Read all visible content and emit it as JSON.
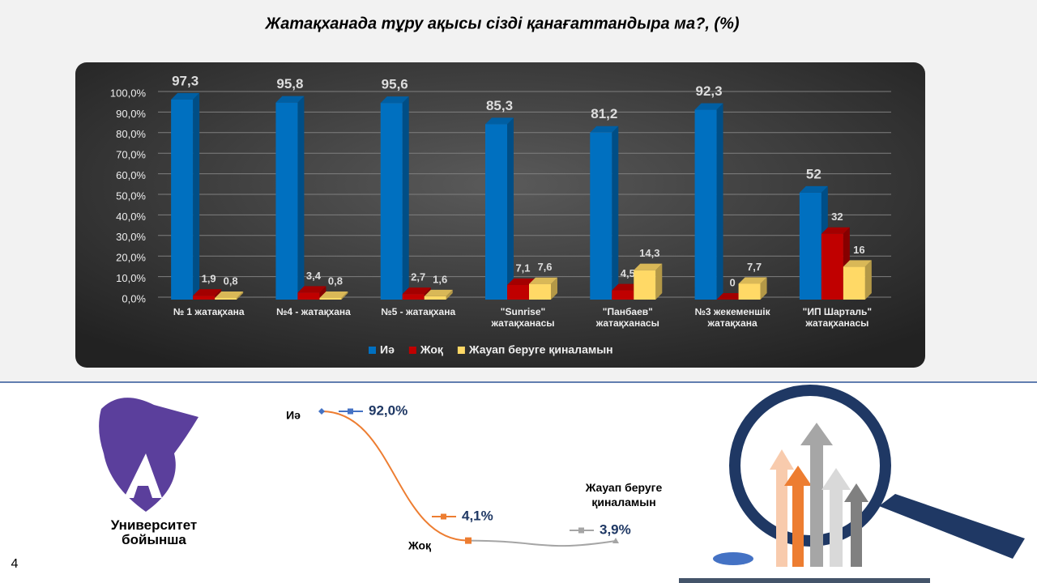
{
  "chart_data": [
    {
      "type": "bar3d",
      "title": "Жатақханада тұру ақысы сізді қанағаттандыра ма?, (%)",
      "categories": [
        "№ 1  жатақхана",
        "№4 - жатақхана",
        "№5 - жатақхана",
        "\"Sunrise\"\nжатақханасы",
        "\"Панбаев\"\nжатақханасы",
        "№3 жекеменшік\nжатақхана",
        "\"ИП Шарталь\"\nжатақханасы"
      ],
      "series": [
        {
          "name": "Иә",
          "color": "#0070c0",
          "values": [
            97.3,
            95.8,
            95.6,
            85.3,
            81.2,
            92.3,
            52
          ],
          "value_labels": [
            "97,3",
            "95,8",
            "95,6",
            "85,3",
            "81,2",
            "92,3",
            "52"
          ]
        },
        {
          "name": "Жоқ",
          "color": "#c00000",
          "values": [
            1.9,
            3.4,
            2.7,
            7.1,
            4.5,
            0,
            32
          ],
          "value_labels": [
            "1,9",
            "3,4",
            "2,7",
            "7,1",
            "4,5",
            "0",
            "32"
          ]
        },
        {
          "name": "Жауап беруге қиналамын",
          "color": "#ffd966",
          "values": [
            0.8,
            0.8,
            1.6,
            7.6,
            14.3,
            7.7,
            16
          ],
          "value_labels": [
            "0,8",
            "0,8",
            "1,6",
            "7,6",
            "14,3",
            "7,7",
            "16"
          ]
        }
      ],
      "ylim": [
        0,
        100
      ],
      "yticks": [
        {
          "value": 0,
          "label": "0,0%"
        },
        {
          "value": 10,
          "label": "10,0%"
        },
        {
          "value": 20,
          "label": "20,0%"
        },
        {
          "value": 30,
          "label": "30,0%"
        },
        {
          "value": 40,
          "label": "40,0%"
        },
        {
          "value": 50,
          "label": "50,0%"
        },
        {
          "value": 60,
          "label": "60,0%"
        },
        {
          "value": 70,
          "label": "70,0%"
        },
        {
          "value": 80,
          "label": "80,0%"
        },
        {
          "value": 90,
          "label": "90,0%"
        },
        {
          "value": 100,
          "label": "100,0%"
        }
      ],
      "grid": true,
      "legend": "bottom"
    },
    {
      "type": "line",
      "categories": [
        "Иә",
        "Жоқ",
        "Жауап беруге\nқиналамын"
      ],
      "values": [
        92.0,
        4.1,
        3.9
      ],
      "value_labels": [
        "92,0%",
        "4,1%",
        "3,9%"
      ],
      "colors": [
        "#4472c4",
        "#ed7d31",
        "#a5a5a5"
      ]
    }
  ],
  "logo_caption": "Университет\nбойынша",
  "page_number": "4"
}
